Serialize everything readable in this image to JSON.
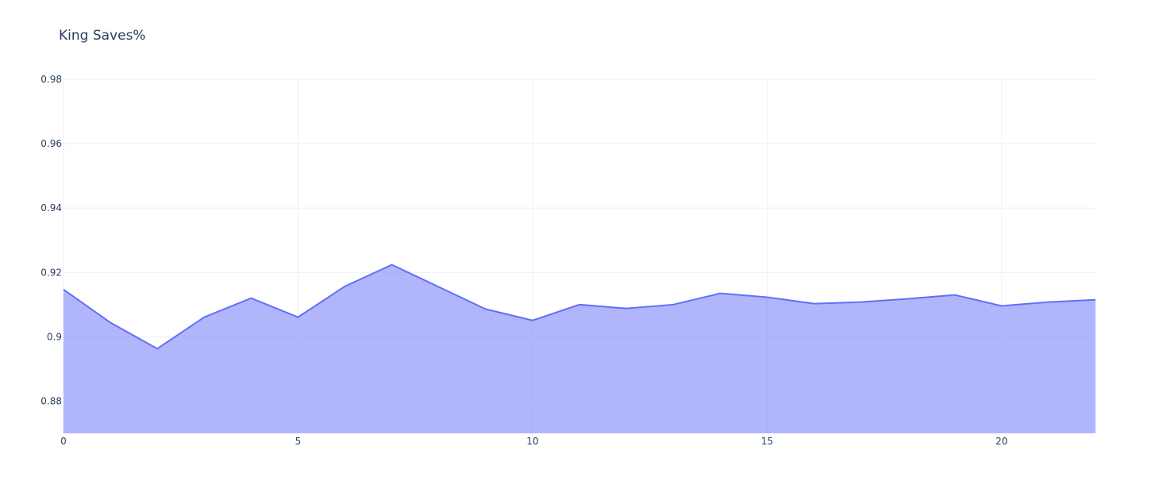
{
  "chart_data": {
    "type": "area",
    "title": "King Saves%",
    "x": [
      0,
      1,
      2,
      3,
      4,
      5,
      6,
      7,
      8,
      9,
      10,
      11,
      12,
      13,
      14,
      15,
      16,
      17,
      18,
      19,
      20,
      21,
      22
    ],
    "values": [
      0.9147,
      0.9044,
      0.8963,
      0.9061,
      0.912,
      0.9061,
      0.9157,
      0.9224,
      0.9155,
      0.9086,
      0.9051,
      0.91,
      0.9088,
      0.91,
      0.9135,
      0.9123,
      0.9103,
      0.9108,
      0.9118,
      0.913,
      0.9096,
      0.9108,
      0.9115
    ],
    "color": "#636efa",
    "xlim": [
      0,
      22
    ],
    "xticks": [
      0,
      5,
      10,
      15,
      20
    ],
    "ylim": [
      0.87,
      0.98
    ],
    "yticks": [
      0.88,
      0.9,
      0.92,
      0.94,
      0.96,
      0.98
    ],
    "grid": true
  }
}
